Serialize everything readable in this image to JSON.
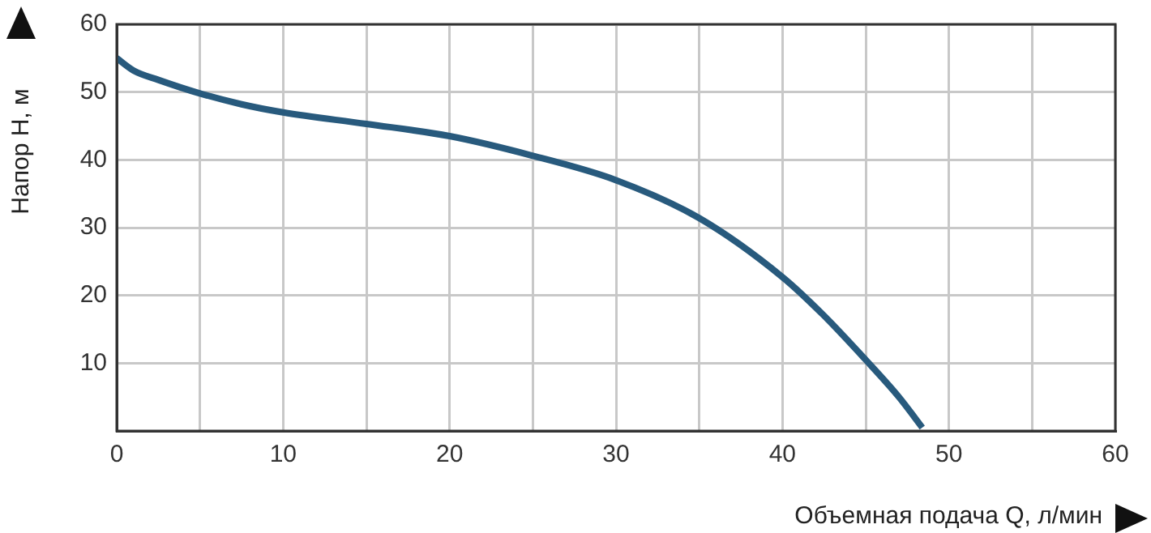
{
  "chart_data": {
    "type": "line",
    "xlabel": "Объемная подача Q, л/мин",
    "ylabel": "Напор H, м",
    "x": [
      0,
      1,
      2.5,
      5,
      7.5,
      10,
      15,
      20,
      25,
      30,
      35,
      40,
      42.5,
      45,
      47,
      48.4
    ],
    "series": [
      {
        "color": "#285a7d",
        "values": [
          55,
          53.2,
          51.8,
          49.8,
          48.2,
          47,
          45.3,
          43.5,
          40.6,
          37,
          31.4,
          22.7,
          17,
          10.5,
          5,
          0.5
        ]
      }
    ],
    "xlim": [
      0,
      60
    ],
    "xticks": [
      0,
      {
        "value": 5,
        "label": null
      },
      10,
      {
        "value": 15,
        "label": null
      },
      20,
      {
        "value": 25,
        "label": null
      },
      30,
      {
        "value": 35,
        "label": null
      },
      40,
      {
        "value": 45,
        "label": null
      },
      50,
      {
        "value": 55,
        "label": null
      },
      60
    ],
    "ylim": [
      0,
      60
    ],
    "yticks": [
      10,
      20,
      30,
      40,
      50,
      60
    ],
    "grid": true,
    "marker": "none",
    "line_style": "solid"
  }
}
